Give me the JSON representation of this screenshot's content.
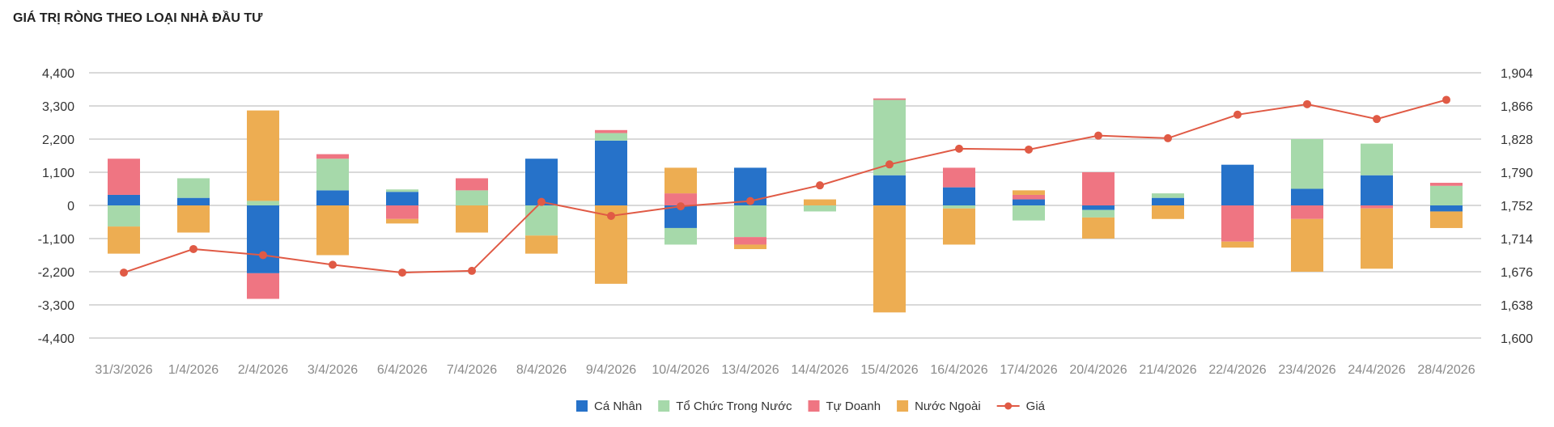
{
  "title": "GIÁ TRỊ RÒNG THEO LOẠI NHÀ ĐẦU TƯ",
  "chart_data": {
    "type": "bar",
    "stacked": true,
    "title": "GIÁ TRỊ RÒNG THEO LOẠI NHÀ ĐẦU TƯ",
    "categories": [
      "31/3/2026",
      "1/4/2026",
      "2/4/2026",
      "3/4/2026",
      "6/4/2026",
      "7/4/2026",
      "8/4/2026",
      "9/4/2026",
      "10/4/2026",
      "13/4/2026",
      "14/4/2026",
      "15/4/2026",
      "16/4/2026",
      "17/4/2026",
      "20/4/2026",
      "21/4/2026",
      "22/4/2026",
      "23/4/2026",
      "24/4/2026",
      "28/4/2026"
    ],
    "series": [
      {
        "name": "Cá Nhân",
        "color": "#2672c9",
        "values": [
          350,
          250,
          -2250,
          500,
          450,
          0,
          1550,
          2150,
          -750,
          1250,
          0,
          1000,
          600,
          200,
          -150,
          250,
          1350,
          550,
          1000,
          -200
        ]
      },
      {
        "name": "Tổ Chức Trong Nước",
        "color": "#a6d9aa",
        "values": [
          -700,
          650,
          150,
          1050,
          80,
          500,
          -1000,
          250,
          -550,
          -1050,
          -200,
          2500,
          -100,
          -500,
          -250,
          150,
          0,
          1650,
          1050,
          650
        ]
      },
      {
        "name": "Tự Doanh",
        "color": "#ef7582",
        "values": [
          1200,
          0,
          -850,
          150,
          -450,
          400,
          0,
          100,
          400,
          -250,
          0,
          50,
          650,
          150,
          1100,
          0,
          -1200,
          -450,
          -100,
          100
        ]
      },
      {
        "name": "Nước Ngoài",
        "color": "#edad52",
        "values": [
          -900,
          -900,
          3000,
          -1650,
          -150,
          -900,
          -600,
          -2600,
          850,
          -150,
          200,
          -3550,
          -1200,
          150,
          -700,
          -450,
          -200,
          -1750,
          -2000,
          -550
        ]
      }
    ],
    "line": {
      "name": "Giá",
      "color": "#e05a45",
      "axis": "right",
      "values": [
        1675,
        1702,
        1695,
        1684,
        1675,
        1677,
        1756,
        1740,
        1751,
        1757,
        1775,
        1799,
        1817,
        1816,
        1832,
        1829,
        1856,
        1868,
        1851,
        1873
      ]
    },
    "y_left": {
      "min": -4400,
      "max": 4400,
      "ticks": [
        4400,
        3300,
        2200,
        1100,
        0,
        -1100,
        -2200,
        -3300,
        -4400
      ],
      "tick_labels": [
        "4,400",
        "3,300",
        "2,200",
        "1,100",
        "0",
        "-1,100",
        "-2,200",
        "-3,300",
        "-4,400"
      ]
    },
    "y_right": {
      "min": 1600,
      "max": 1904,
      "ticks": [
        1904,
        1866,
        1828,
        1790,
        1752,
        1714,
        1676,
        1638,
        1600
      ],
      "tick_labels": [
        "1,904",
        "1,866",
        "1,828",
        "1,790",
        "1,752",
        "1,714",
        "1,676",
        "1,638",
        "1,600"
      ]
    },
    "grid": true,
    "legend": "bottom-center"
  }
}
